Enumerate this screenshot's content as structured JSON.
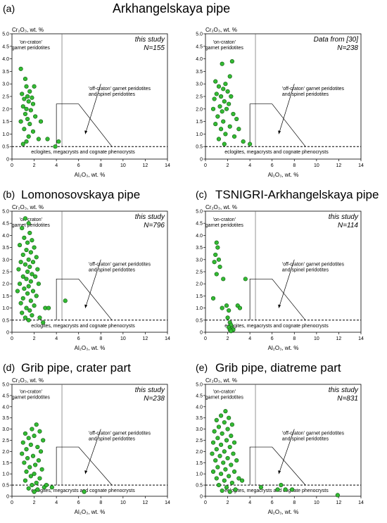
{
  "figure": {
    "panel_labels": [
      "(a)",
      "(b)",
      "(c)",
      "(d)",
      "(e)"
    ],
    "title_top": "Arkhangelskaya pipe",
    "title_b": "Lomonosovskaya pipe",
    "title_c": "TSNIGRI-Arkhangelskaya pipe",
    "title_d": "Grib pipe, crater part",
    "title_e": "Grib pipe, diatreme part"
  },
  "style": {
    "point_fill": "#33bb33",
    "point_stroke": "#115511"
  },
  "chart_data": [
    {
      "type": "scatter",
      "panel": "(a)",
      "source_note": "this study",
      "n_note": "N=155",
      "xlabel": "Al₂O₃, wt. %",
      "ylabel": "Cr₂O₃, wt. %",
      "xlim": [
        0,
        14
      ],
      "ylim": [
        0,
        5.0
      ],
      "xticks": [
        "0",
        "2",
        "4",
        "6",
        "8",
        "10",
        "12",
        "14"
      ],
      "yticks": [
        "0",
        "0.5",
        "1.0",
        "1.5",
        "2.0",
        "2.5",
        "3.0",
        "3.5",
        "4.0",
        "4.5",
        "5.0"
      ],
      "field_labels": {
        "on_craton": [
          "'on-craton'",
          "garnet peridotites"
        ],
        "off_craton": [
          "'off-craton' garnet peridotites",
          "and spinel peridotites"
        ],
        "low": "eclogites, megacrysts and cognate phenocrysts"
      },
      "points": [
        [
          0.8,
          3.6
        ],
        [
          1.2,
          3.2
        ],
        [
          1.3,
          2.9
        ],
        [
          2.0,
          2.9
        ],
        [
          1.6,
          2.7
        ],
        [
          0.9,
          2.6
        ],
        [
          1.4,
          2.5
        ],
        [
          1.8,
          2.45
        ],
        [
          1.1,
          2.4
        ],
        [
          1.5,
          2.3
        ],
        [
          1.9,
          2.2
        ],
        [
          1.0,
          2.1
        ],
        [
          1.3,
          2.0
        ],
        [
          1.7,
          1.95
        ],
        [
          1.2,
          1.8
        ],
        [
          2.1,
          1.7
        ],
        [
          1.4,
          1.6
        ],
        [
          0.8,
          1.5
        ],
        [
          1.6,
          1.4
        ],
        [
          1.1,
          1.2
        ],
        [
          1.9,
          1.1
        ],
        [
          1.5,
          0.9
        ],
        [
          2.4,
          0.8
        ],
        [
          1.3,
          0.7
        ],
        [
          3.2,
          0.8
        ],
        [
          3.9,
          0.5
        ],
        [
          4.2,
          0.7
        ],
        [
          1.0,
          0.6
        ],
        [
          2.6,
          1.5
        ]
      ]
    },
    {
      "type": "scatter",
      "panel": "(a)",
      "source_note": "Data from [30]",
      "n_note": "N=238",
      "xlabel": "Al₂O₃, wt. %",
      "ylabel": "Cr₂O₃, wt. %",
      "xlim": [
        0,
        14
      ],
      "ylim": [
        0,
        5.0
      ],
      "xticks": [
        "0",
        "2",
        "4",
        "6",
        "8",
        "10",
        "12",
        "14"
      ],
      "yticks": [
        "0",
        "0.5",
        "1.0",
        "1.5",
        "2.0",
        "2.5",
        "3.0",
        "3.5",
        "4.0",
        "4.5",
        "5.0"
      ],
      "field_labels": {
        "on_craton": [
          "'on-craton'",
          "garnet peridotites"
        ],
        "off_craton": [
          "'off-craton' garnet peridotites",
          "and spinel peridotites"
        ],
        "low": "eclogites, megacrysts and cognate phenocrysts"
      },
      "points": [
        [
          1.5,
          3.8
        ],
        [
          2.2,
          3.3
        ],
        [
          0.9,
          3.1
        ],
        [
          1.8,
          3.0
        ],
        [
          2.4,
          3.9
        ],
        [
          1.2,
          2.9
        ],
        [
          1.6,
          2.8
        ],
        [
          2.0,
          2.7
        ],
        [
          1.0,
          2.6
        ],
        [
          1.4,
          2.5
        ],
        [
          2.3,
          2.5
        ],
        [
          0.8,
          2.4
        ],
        [
          1.7,
          2.3
        ],
        [
          2.1,
          2.2
        ],
        [
          1.3,
          2.1
        ],
        [
          0.7,
          2.0
        ],
        [
          1.9,
          2.0
        ],
        [
          1.5,
          1.9
        ],
        [
          2.5,
          1.8
        ],
        [
          1.1,
          1.7
        ],
        [
          2.8,
          1.6
        ],
        [
          1.6,
          1.5
        ],
        [
          0.9,
          1.4
        ],
        [
          2.2,
          1.3
        ],
        [
          1.4,
          1.2
        ],
        [
          1.8,
          1.0
        ],
        [
          2.6,
          0.9
        ],
        [
          1.2,
          0.8
        ],
        [
          3.4,
          0.7
        ],
        [
          4.0,
          0.6
        ],
        [
          1.7,
          0.6
        ],
        [
          3.0,
          1.2
        ]
      ]
    },
    {
      "type": "scatter",
      "panel": "(b)",
      "source_note": "this study",
      "n_note": "N=796",
      "xlabel": "Al₂O₃, wt. %",
      "ylabel": "Cr₂O₃, wt. %",
      "xlim": [
        0,
        14
      ],
      "ylim": [
        0,
        5.0
      ],
      "xticks": [
        "0",
        "2",
        "4",
        "6",
        "8",
        "10",
        "12",
        "14"
      ],
      "yticks": [
        "0",
        "0.5",
        "1.0",
        "1.5",
        "2.0",
        "2.5",
        "3.0",
        "3.5",
        "4.0",
        "4.5",
        "5.0"
      ],
      "field_labels": {
        "on_craton": [
          "'on-craton'",
          "garnet peridotites"
        ],
        "off_craton": [
          "'off-craton' garnet peridotites",
          "and spinel peridotites"
        ],
        "low": "eclogites, megacrysts and cognate phenocrysts"
      },
      "points": [
        [
          1.2,
          4.7
        ],
        [
          1.5,
          4.5
        ],
        [
          0.9,
          4.3
        ],
        [
          1.6,
          4.1
        ],
        [
          1.1,
          3.9
        ],
        [
          1.8,
          3.8
        ],
        [
          1.4,
          3.7
        ],
        [
          0.7,
          3.6
        ],
        [
          2.0,
          3.5
        ],
        [
          1.3,
          3.4
        ],
        [
          1.7,
          3.3
        ],
        [
          1.0,
          3.2
        ],
        [
          2.2,
          3.1
        ],
        [
          1.5,
          3.0
        ],
        [
          0.8,
          2.9
        ],
        [
          1.9,
          2.9
        ],
        [
          1.2,
          2.8
        ],
        [
          1.6,
          2.7
        ],
        [
          2.3,
          2.6
        ],
        [
          0.6,
          2.6
        ],
        [
          1.4,
          2.5
        ],
        [
          1.8,
          2.4
        ],
        [
          1.0,
          2.3
        ],
        [
          2.1,
          2.3
        ],
        [
          1.3,
          2.2
        ],
        [
          1.7,
          2.1
        ],
        [
          0.7,
          2.0
        ],
        [
          2.4,
          2.0
        ],
        [
          1.5,
          1.9
        ],
        [
          1.1,
          1.8
        ],
        [
          1.9,
          1.7
        ],
        [
          0.5,
          1.7
        ],
        [
          1.4,
          1.6
        ],
        [
          2.2,
          1.5
        ],
        [
          1.0,
          1.4
        ],
        [
          1.7,
          1.3
        ],
        [
          0.8,
          1.2
        ],
        [
          2.0,
          1.1
        ],
        [
          1.3,
          1.0
        ],
        [
          1.6,
          0.9
        ],
        [
          0.9,
          0.8
        ],
        [
          1.8,
          0.7
        ],
        [
          1.2,
          0.6
        ],
        [
          2.5,
          0.6
        ],
        [
          1.5,
          0.5
        ],
        [
          3.0,
          1.0
        ],
        [
          3.3,
          1.0
        ],
        [
          4.8,
          1.3
        ],
        [
          2.8,
          0.4
        ]
      ]
    },
    {
      "type": "scatter",
      "panel": "(c)",
      "source_note": "this study",
      "n_note": "N=114",
      "xlabel": "Al₂O₃, wt. %",
      "ylabel": "Cr₂O₃, wt. %",
      "xlim": [
        0,
        14
      ],
      "ylim": [
        0,
        5.0
      ],
      "xticks": [
        "0",
        "2",
        "4",
        "6",
        "8",
        "10",
        "12",
        "14"
      ],
      "yticks": [
        "0",
        "0.5",
        "1.0",
        "1.5",
        "2.0",
        "2.5",
        "3.0",
        "3.5",
        "4.0",
        "4.5",
        "5.0"
      ],
      "field_labels": {
        "on_craton": [
          "'on-craton'",
          "garnet peridotites"
        ],
        "off_craton": [
          "'off-craton' garnet peridotites",
          "and spinel peridotites"
        ],
        "low": "eclogites, megacrysts and cognate phenocrysts"
      },
      "points": [
        [
          1.0,
          3.7
        ],
        [
          1.1,
          3.5
        ],
        [
          0.9,
          3.2
        ],
        [
          1.2,
          3.0
        ],
        [
          0.8,
          2.9
        ],
        [
          1.3,
          2.7
        ],
        [
          1.0,
          2.4
        ],
        [
          1.6,
          2.2
        ],
        [
          0.7,
          1.4
        ],
        [
          1.9,
          1.1
        ],
        [
          2.1,
          0.9
        ],
        [
          2.0,
          0.6
        ],
        [
          2.2,
          0.4
        ],
        [
          2.3,
          0.3
        ],
        [
          2.1,
          0.2
        ],
        [
          2.4,
          0.15
        ],
        [
          2.2,
          0.1
        ],
        [
          2.5,
          0.1
        ],
        [
          2.3,
          0.05
        ],
        [
          3.6,
          2.2
        ],
        [
          2.9,
          1.1
        ],
        [
          3.1,
          1.0
        ],
        [
          1.5,
          1.0
        ]
      ]
    },
    {
      "type": "scatter",
      "panel": "(d)",
      "source_note": "this study",
      "n_note": "N=238",
      "xlabel": "Al₂O₃, wt. %",
      "ylabel": "Cr₂O₃, wt. %",
      "xlim": [
        0,
        14
      ],
      "ylim": [
        0,
        5.0
      ],
      "xticks": [
        "0",
        "2",
        "4",
        "6",
        "8",
        "10",
        "12",
        "14"
      ],
      "yticks": [
        "0",
        "0.5",
        "1.0",
        "1.5",
        "2.0",
        "2.5",
        "3.0",
        "3.5",
        "4.0",
        "4.5",
        "5.0"
      ],
      "field_labels": {
        "on_craton": [
          "'on-craton'",
          "garnet peridotites"
        ],
        "off_craton": [
          "'off-craton' garnet peridotites",
          "and spinel peridotites"
        ],
        "low": "eclogites, megacrysts and cognate phenocrysts"
      },
      "points": [
        [
          2.2,
          3.2
        ],
        [
          1.8,
          3.0
        ],
        [
          2.5,
          2.9
        ],
        [
          1.2,
          2.8
        ],
        [
          2.0,
          2.7
        ],
        [
          1.5,
          2.6
        ],
        [
          2.8,
          2.5
        ],
        [
          1.0,
          2.4
        ],
        [
          1.7,
          2.3
        ],
        [
          2.3,
          2.2
        ],
        [
          1.3,
          2.1
        ],
        [
          2.6,
          2.0
        ],
        [
          0.9,
          1.9
        ],
        [
          1.9,
          1.8
        ],
        [
          1.4,
          1.7
        ],
        [
          2.4,
          1.6
        ],
        [
          1.1,
          1.5
        ],
        [
          2.1,
          1.4
        ],
        [
          1.6,
          1.3
        ],
        [
          2.7,
          1.2
        ],
        [
          1.3,
          1.1
        ],
        [
          2.0,
          1.0
        ],
        [
          1.7,
          0.9
        ],
        [
          2.5,
          0.8
        ],
        [
          1.2,
          0.7
        ],
        [
          2.2,
          0.6
        ],
        [
          1.8,
          0.5
        ],
        [
          2.9,
          0.4
        ],
        [
          1.5,
          0.35
        ],
        [
          2.3,
          0.3
        ],
        [
          2.0,
          0.2
        ],
        [
          3.1,
          0.5
        ],
        [
          3.6,
          0.4
        ],
        [
          6.5,
          0.2
        ]
      ]
    },
    {
      "type": "scatter",
      "panel": "(e)",
      "source_note": "this study",
      "n_note": "N=831",
      "xlabel": "Al₂O₃, wt. %",
      "ylabel": "Cr₂O₃, wt. %",
      "xlim": [
        0,
        14
      ],
      "ylim": [
        0,
        5.0
      ],
      "xticks": [
        "0",
        "2",
        "4",
        "6",
        "8",
        "10",
        "12",
        "14"
      ],
      "yticks": [
        "0",
        "0.5",
        "1.0",
        "1.5",
        "2.0",
        "2.5",
        "3.0",
        "3.5",
        "4.0",
        "4.5",
        "5.0"
      ],
      "field_labels": {
        "on_craton": [
          "'on-craton'",
          "garnet peridotites"
        ],
        "off_craton": [
          "'off-craton' garnet peridotites",
          "and spinel peridotites"
        ],
        "low": "eclogites, megacrysts and cognate phenocrysts"
      },
      "points": [
        [
          1.8,
          3.8
        ],
        [
          1.4,
          3.6
        ],
        [
          2.1,
          3.5
        ],
        [
          1.0,
          3.4
        ],
        [
          1.7,
          3.3
        ],
        [
          2.4,
          3.2
        ],
        [
          1.2,
          3.1
        ],
        [
          2.0,
          3.0
        ],
        [
          0.8,
          2.9
        ],
        [
          1.5,
          2.8
        ],
        [
          2.3,
          2.7
        ],
        [
          1.1,
          2.6
        ],
        [
          1.9,
          2.5
        ],
        [
          2.6,
          2.4
        ],
        [
          0.7,
          2.4
        ],
        [
          1.4,
          2.3
        ],
        [
          2.2,
          2.2
        ],
        [
          1.0,
          2.1
        ],
        [
          1.7,
          2.0
        ],
        [
          2.5,
          1.9
        ],
        [
          0.6,
          1.9
        ],
        [
          1.3,
          1.8
        ],
        [
          2.0,
          1.7
        ],
        [
          2.8,
          1.6
        ],
        [
          0.9,
          1.6
        ],
        [
          1.6,
          1.5
        ],
        [
          2.3,
          1.4
        ],
        [
          1.1,
          1.3
        ],
        [
          1.8,
          1.2
        ],
        [
          2.6,
          1.1
        ],
        [
          0.7,
          1.1
        ],
        [
          1.4,
          1.0
        ],
        [
          2.1,
          0.9
        ],
        [
          1.0,
          0.8
        ],
        [
          1.7,
          0.7
        ],
        [
          2.4,
          0.6
        ],
        [
          1.2,
          0.5
        ],
        [
          1.9,
          0.4
        ],
        [
          2.7,
          0.3
        ],
        [
          1.5,
          0.25
        ],
        [
          2.2,
          0.2
        ],
        [
          3.0,
          0.8
        ],
        [
          3.3,
          0.7
        ],
        [
          5.0,
          0.4
        ],
        [
          6.5,
          0.3
        ],
        [
          7.2,
          0.3
        ],
        [
          7.8,
          0.3
        ],
        [
          6.8,
          0.5
        ],
        [
          11.9,
          0.05
        ]
      ]
    }
  ]
}
